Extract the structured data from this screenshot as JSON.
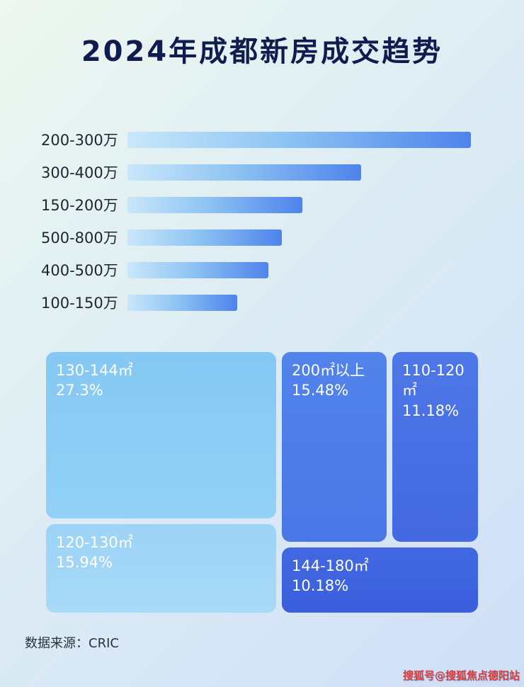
{
  "title": "2024年成都新房成交趋势",
  "source": "数据来源：CRIC",
  "watermark": "搜狐号@搜狐焦点德阳站",
  "colors": {
    "title_text": "#101b4e",
    "bar_gradient_start": "#c9e7fa",
    "bar_gradient_end": "#4e83ec",
    "tile_light_blue": "#84c8f3",
    "tile_lighter_blue": "#9cd3f6",
    "tile_medium_blue": "#4d7ce9",
    "tile_royal_blue": "#4a72e5",
    "tile_deep_blue": "#3f65df",
    "watermark_red": "#e03a3a"
  },
  "chart_data": [
    {
      "type": "bar",
      "orientation": "horizontal",
      "title": "2024年成都新房成交趋势",
      "categories": [
        "200-300万",
        "300-400万",
        "150-200万",
        "500-800万",
        "400-500万",
        "100-150万"
      ],
      "values": [
        100,
        68,
        51,
        45,
        41,
        32
      ],
      "value_unit": "relative length (% of longest bar, no axis labels shown)",
      "xlabel": "",
      "ylabel": "",
      "grid": false,
      "legend": false
    },
    {
      "type": "heatmap",
      "subtype": "treemap",
      "items": [
        {
          "label": "130-144㎡",
          "value": "27.3%"
        },
        {
          "label": "120-130㎡",
          "value": "15.94%"
        },
        {
          "label": "200㎡以上",
          "value": "15.48%"
        },
        {
          "label": "110-120㎡",
          "value": "11.18%"
        },
        {
          "label": "144-180㎡",
          "value": "10.18%"
        }
      ]
    }
  ]
}
